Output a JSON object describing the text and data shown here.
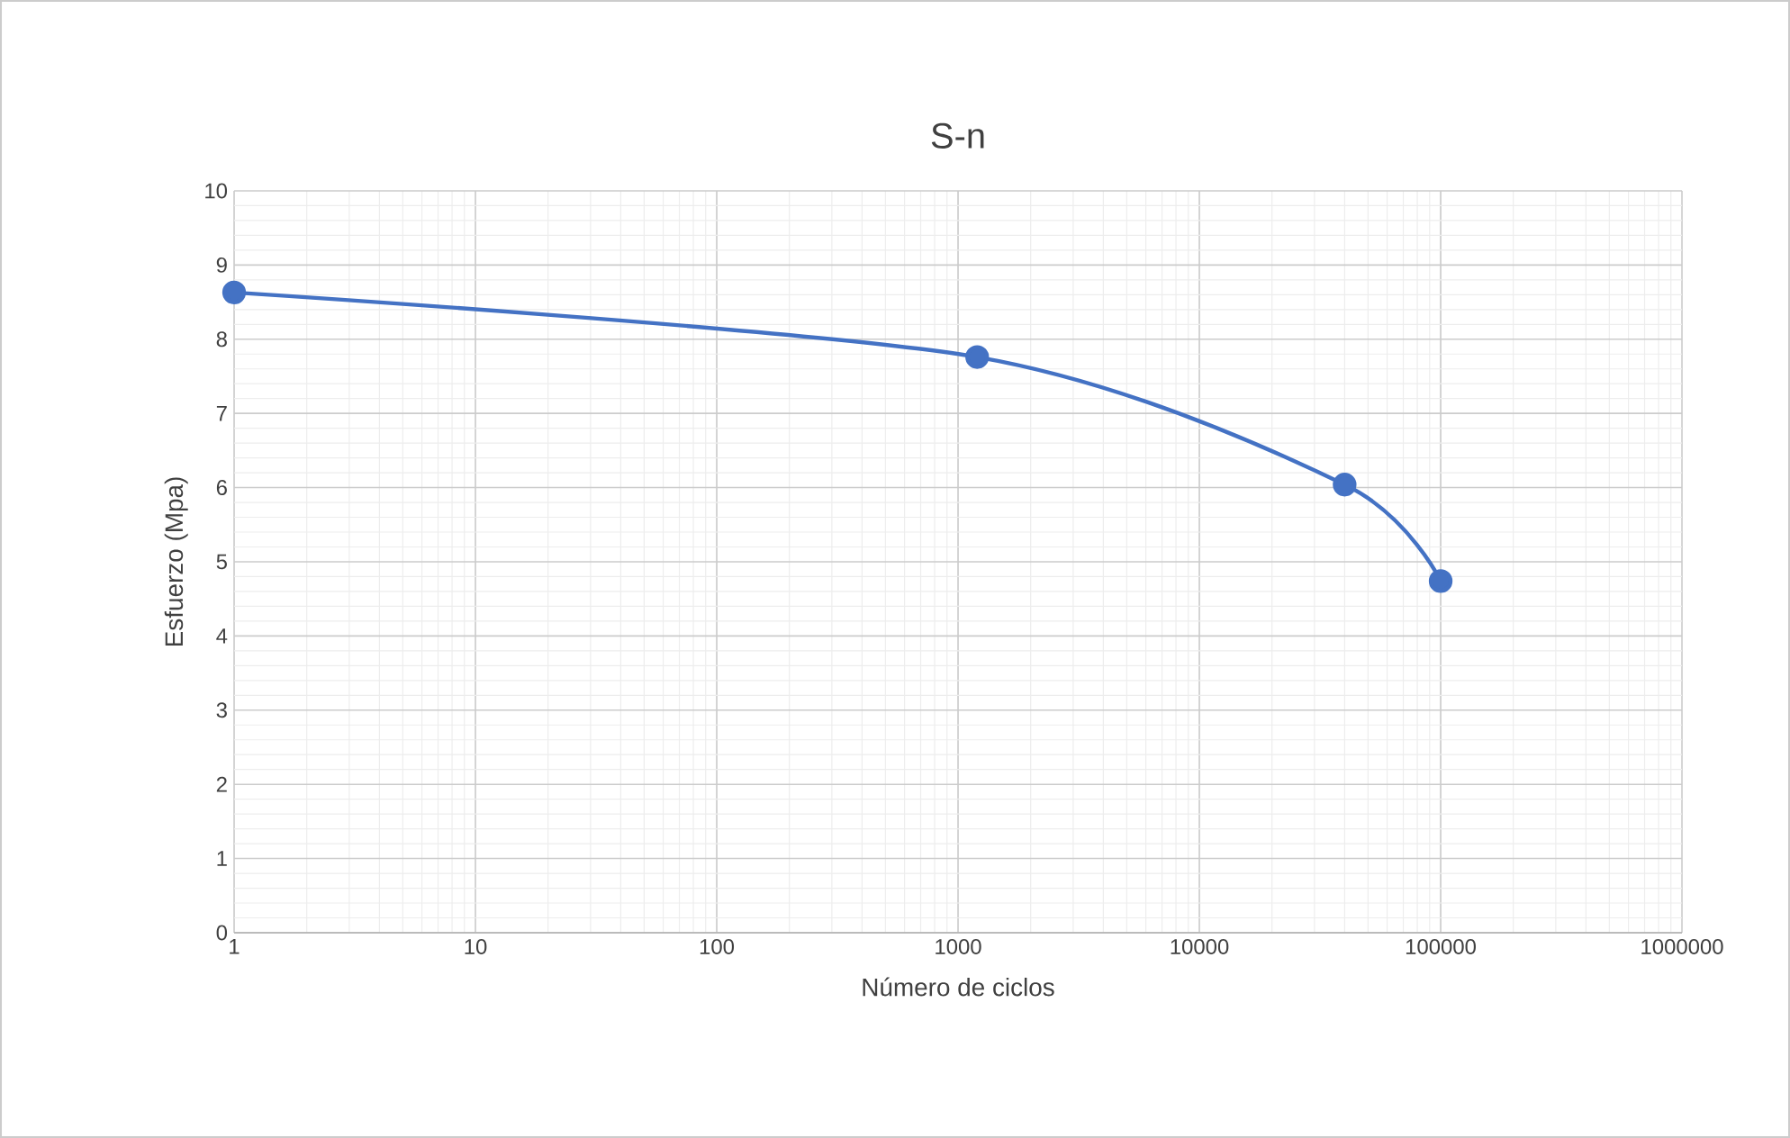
{
  "chart_data": {
    "type": "line",
    "title": "S-n",
    "xlabel": "Número de ciclos",
    "ylabel": "Esfuerzo (Mpa)",
    "x": [
      1,
      1200,
      40000,
      100000
    ],
    "series": [
      {
        "color": "#4472c4",
        "values": [
          8.63,
          7.76,
          6.04,
          4.74
        ]
      }
    ],
    "log": "x",
    "xlim": [
      1,
      1000000
    ],
    "xticks": [
      1,
      10,
      100,
      1000,
      10000,
      100000,
      1000000
    ],
    "ylim": [
      0,
      10
    ],
    "yticks": [
      0,
      1,
      2,
      3,
      4,
      5,
      6,
      7,
      8,
      9,
      10
    ],
    "grid": true,
    "marker": "circle",
    "line_style": "solid"
  }
}
